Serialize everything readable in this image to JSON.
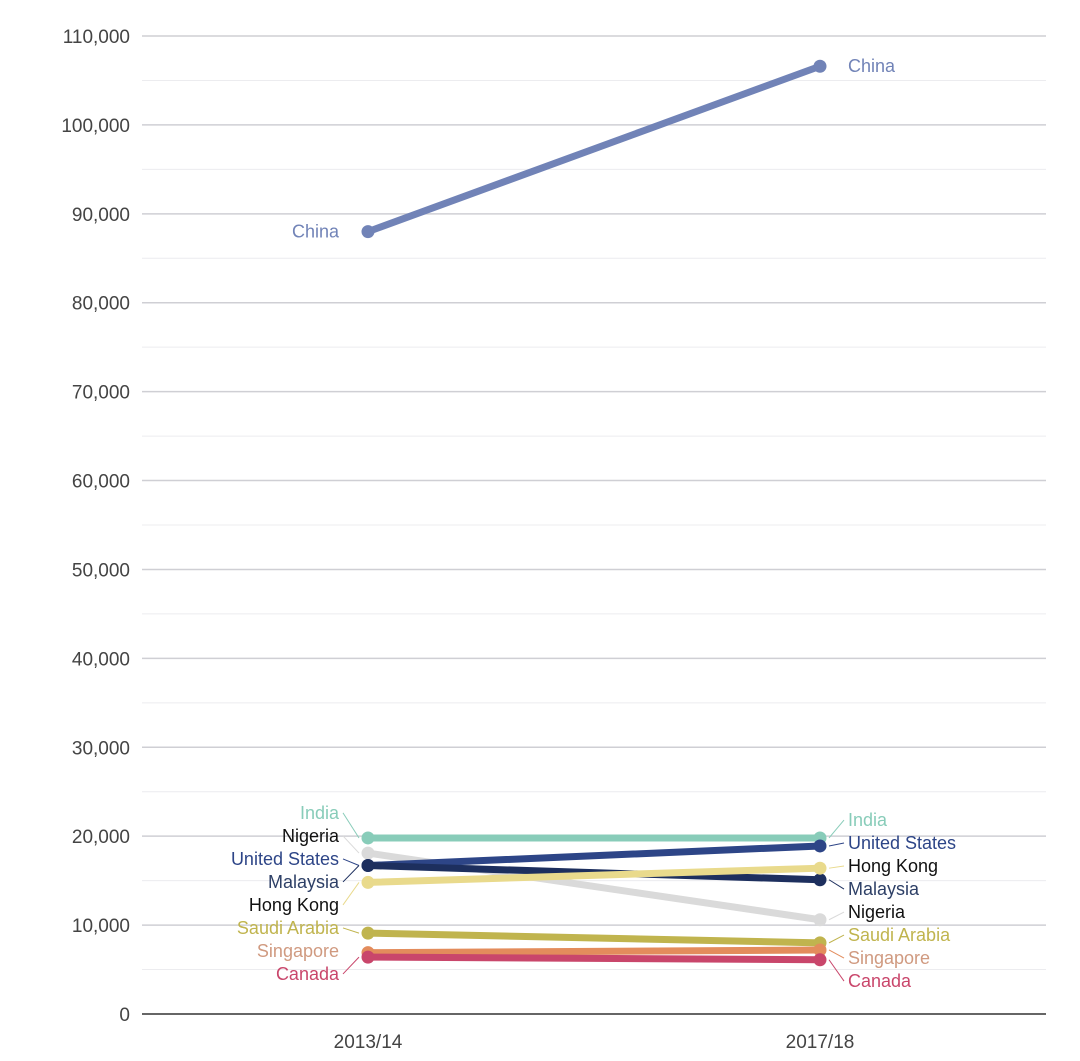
{
  "chart_data": {
    "type": "line",
    "subtype": "slope",
    "title": "",
    "xlabel": "",
    "ylabel": "",
    "categories": [
      "2013/14",
      "2017/18"
    ],
    "ylim": [
      0,
      110000
    ],
    "yticks": [
      0,
      10000,
      20000,
      30000,
      40000,
      50000,
      60000,
      70000,
      80000,
      90000,
      100000,
      110000
    ],
    "ytick_labels": [
      "0",
      "10,000",
      "20,000",
      "30,000",
      "40,000",
      "50,000",
      "60,000",
      "70,000",
      "80,000",
      "90,000",
      "100,000",
      "110,000"
    ],
    "grid": true,
    "series": [
      {
        "name": "China",
        "values": [
          88000,
          106600
        ],
        "color": "#7183b7",
        "label_color": "#7183b7"
      },
      {
        "name": "India",
        "values": [
          19800,
          19800
        ],
        "color": "#88ccb9",
        "label_color": "#88ccb9"
      },
      {
        "name": "Nigeria",
        "values": [
          18100,
          10600
        ],
        "color": "#dadada",
        "label_color": "#111111"
      },
      {
        "name": "United States",
        "values": [
          16700,
          18900
        ],
        "color": "#2d4587",
        "label_color": "#2d4587"
      },
      {
        "name": "Malaysia",
        "values": [
          16700,
          15100
        ],
        "color": "#1d2f5e",
        "label_color": "#2d3f66"
      },
      {
        "name": "Hong Kong",
        "values": [
          14800,
          16400
        ],
        "color": "#e9da8c",
        "label_color": "#111111"
      },
      {
        "name": "Saudi Arabia",
        "values": [
          9100,
          8000
        ],
        "color": "#c0b44e",
        "label_color": "#c0b44e"
      },
      {
        "name": "Singapore",
        "values": [
          6900,
          7200
        ],
        "color": "#e38c5c",
        "label_color": "#d09a80"
      },
      {
        "name": "Canada",
        "values": [
          6400,
          6100
        ],
        "color": "#c9466b",
        "label_color": "#c9466b"
      }
    ]
  }
}
